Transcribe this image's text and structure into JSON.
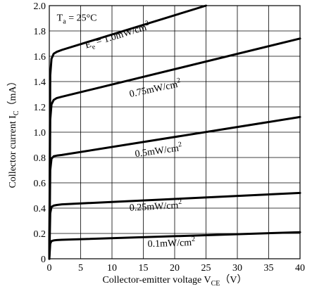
{
  "chart_data": {
    "type": "line",
    "xlabel": {
      "prefix": "Collector-emitter voltage V",
      "sub": "CE",
      "unit": "（V）"
    },
    "ylabel": {
      "prefix": "Collector current I",
      "sub": "C",
      "unit": "（mA）"
    },
    "xlim": [
      0,
      40
    ],
    "ylim": [
      0,
      2.0
    ],
    "xticks": [
      0,
      5,
      10,
      15,
      20,
      25,
      30,
      35,
      40
    ],
    "yticks": [
      0,
      0.2,
      0.4,
      0.6,
      0.8,
      1.0,
      1.2,
      1.4,
      1.6,
      1.8,
      2.0
    ],
    "ytick_labels": [
      "0",
      "0.2",
      "0.4",
      "0.6",
      "0.8",
      "1.0",
      "1.2",
      "1.4",
      "1.6",
      "1.8",
      "2.0"
    ],
    "grid": true,
    "condition": {
      "prefix": "T",
      "sub": "a",
      "rest": " = 25°C"
    },
    "series": [
      {
        "name": "E_e = 1.0mW/cm2",
        "x": [
          0,
          0.15,
          0.35,
          0.7,
          1.2,
          2,
          25
        ],
        "y": [
          0,
          1.45,
          1.58,
          1.62,
          1.635,
          1.65,
          2.0
        ]
      },
      {
        "name": "0.75mW/cm2",
        "x": [
          0,
          0.15,
          0.35,
          0.7,
          1.2,
          2,
          40
        ],
        "y": [
          0,
          1.1,
          1.22,
          1.255,
          1.27,
          1.28,
          1.74
        ]
      },
      {
        "name": "0.5mW/cm2",
        "x": [
          0,
          0.15,
          0.35,
          0.7,
          1.2,
          2,
          40
        ],
        "y": [
          0,
          0.7,
          0.79,
          0.81,
          0.815,
          0.82,
          1.12
        ]
      },
      {
        "name": "0.25mW/cm2",
        "x": [
          0,
          0.15,
          0.35,
          0.7,
          1.2,
          2,
          40
        ],
        "y": [
          0,
          0.36,
          0.41,
          0.42,
          0.425,
          0.43,
          0.52
        ]
      },
      {
        "name": "0.1mW/cm2",
        "x": [
          0,
          0.15,
          0.35,
          0.7,
          1.2,
          2,
          40
        ],
        "y": [
          0,
          0.12,
          0.14,
          0.145,
          0.148,
          0.15,
          0.21
        ]
      }
    ],
    "curve_labels": [
      {
        "text": {
          "prefix": "E",
          "sub": "e",
          "rest": " = 1.0mW/cm",
          "sup": "2"
        },
        "x": 11,
        "y": 1.74,
        "angle_deg": -17
      },
      {
        "text": {
          "prefix": "",
          "sub": "",
          "rest": "0.75mW/cm",
          "sup": "2"
        },
        "x": 17,
        "y": 1.32,
        "angle_deg": -12
      },
      {
        "text": {
          "prefix": "",
          "sub": "",
          "rest": "0.5mW/cm",
          "sup": "2"
        },
        "x": 17.5,
        "y": 0.83,
        "angle_deg": -8
      },
      {
        "text": {
          "prefix": "",
          "sub": "",
          "rest": "0.25mW/cm",
          "sup": "2"
        },
        "x": 17,
        "y": 0.39,
        "angle_deg": -3
      },
      {
        "text": {
          "prefix": "",
          "sub": "",
          "rest": "0.1mW/cm",
          "sup": "2"
        },
        "x": 19.5,
        "y": 0.1,
        "angle_deg": -2
      }
    ]
  }
}
